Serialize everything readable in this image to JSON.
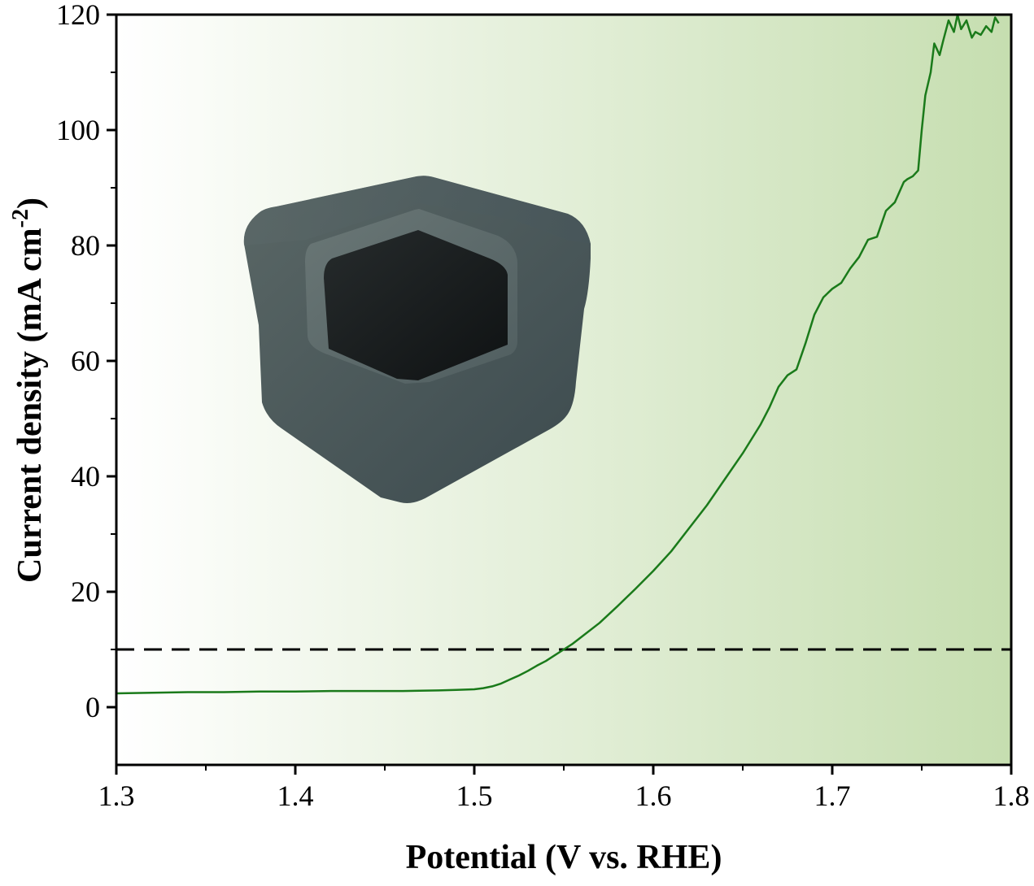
{
  "chart_data": {
    "type": "line",
    "title": "",
    "xlabel": "Potential (V vs. RHE)",
    "ylabel_main": "Current density (mA cm",
    "ylabel_sup": "-2",
    "ylabel_end": ")",
    "xlim": [
      1.3,
      1.8
    ],
    "ylim": [
      -10,
      120
    ],
    "x_ticks": [
      1.3,
      1.4,
      1.5,
      1.6,
      1.7,
      1.8
    ],
    "x_tick_labels": [
      "1.3",
      "1.4",
      "1.5",
      "1.6",
      "1.7",
      "1.8"
    ],
    "y_ticks": [
      0,
      20,
      40,
      60,
      80,
      100,
      120
    ],
    "y_tick_labels": [
      "0",
      "20",
      "40",
      "60",
      "80",
      "100",
      "120"
    ],
    "grid": false,
    "reference_line": {
      "y": 10,
      "style": "dashed",
      "color": "#000000"
    },
    "background_gradient": {
      "from": "#ffffff",
      "to": "#c6deb0"
    },
    "inset_image": "hollow-hexagonal-cube",
    "series": [
      {
        "color": "#1a7a1a",
        "x": [
          1.3,
          1.32,
          1.34,
          1.36,
          1.38,
          1.4,
          1.42,
          1.44,
          1.46,
          1.48,
          1.49,
          1.5,
          1.505,
          1.51,
          1.515,
          1.52,
          1.525,
          1.53,
          1.535,
          1.54,
          1.545,
          1.55,
          1.555,
          1.56,
          1.57,
          1.58,
          1.59,
          1.6,
          1.61,
          1.62,
          1.63,
          1.64,
          1.65,
          1.66,
          1.665,
          1.67,
          1.675,
          1.68,
          1.685,
          1.69,
          1.695,
          1.7,
          1.705,
          1.71,
          1.715,
          1.72,
          1.725,
          1.73,
          1.735,
          1.74,
          1.742,
          1.745,
          1.748,
          1.75,
          1.752,
          1.755,
          1.757,
          1.76,
          1.762,
          1.765,
          1.768,
          1.77,
          1.772,
          1.775,
          1.778,
          1.78,
          1.783,
          1.786,
          1.789,
          1.791,
          1.793
        ],
        "y": [
          2.4,
          2.5,
          2.6,
          2.6,
          2.7,
          2.7,
          2.8,
          2.8,
          2.8,
          2.9,
          3.0,
          3.1,
          3.3,
          3.6,
          4.1,
          4.8,
          5.5,
          6.3,
          7.2,
          8.0,
          9.0,
          10.0,
          11.0,
          12.2,
          14.6,
          17.5,
          20.5,
          23.6,
          27.0,
          31.0,
          35.0,
          39.5,
          44.0,
          49.0,
          52.0,
          55.5,
          57.5,
          58.5,
          63.0,
          68.0,
          71.0,
          72.5,
          73.5,
          76.0,
          78.0,
          81.0,
          81.5,
          86.0,
          87.5,
          91.0,
          91.5,
          92.0,
          93.0,
          100.0,
          106.0,
          110.0,
          115.0,
          113.0,
          115.5,
          119.0,
          117.0,
          120.0,
          117.5,
          119.0,
          116.0,
          117.0,
          116.5,
          118.0,
          117.0,
          119.5,
          118.5
        ]
      }
    ]
  }
}
